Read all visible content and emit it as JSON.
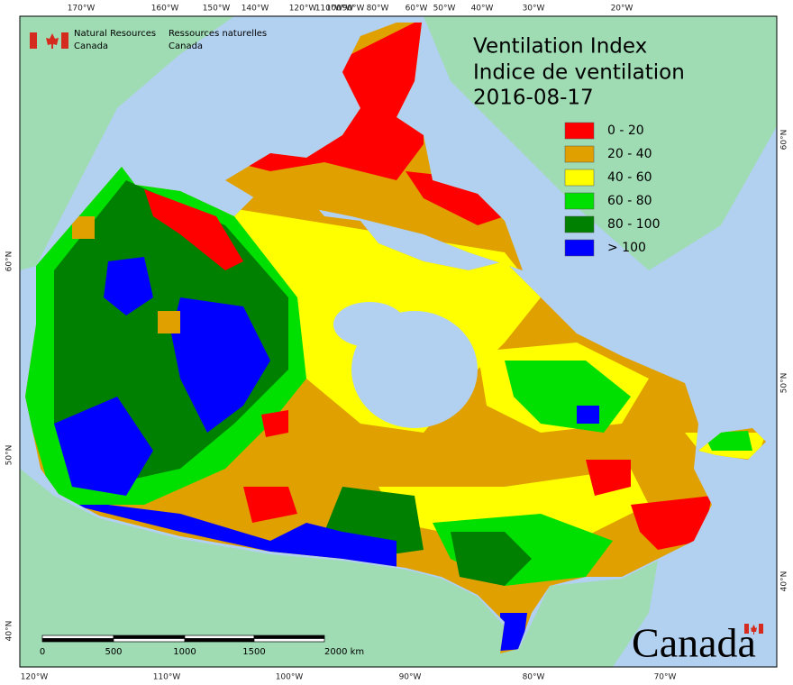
{
  "header": {
    "agency_en": [
      "Natural Resources",
      "Canada"
    ],
    "agency_fr": [
      "Ressources naturelles",
      "Canada"
    ]
  },
  "title": [
    "Ventilation Index",
    "Indice de ventilation"
  ],
  "date": "2016-08-17",
  "legend": [
    {
      "label": "0 - 20",
      "color": "#ff0000"
    },
    {
      "label": "20 - 40",
      "color": "#e0a000"
    },
    {
      "label": "40 - 60",
      "color": "#ffff00"
    },
    {
      "label": "60 - 80",
      "color": "#00e000"
    },
    {
      "label": "80 - 100",
      "color": "#008000"
    },
    {
      "label": "> 100",
      "color": "#0000ff"
    }
  ],
  "graticule": {
    "top": [
      "170°W",
      "160°W",
      "150°W",
      "140°W",
      "120°W",
      "110°W",
      "100°W",
      "90°W",
      "80°W",
      "60°W",
      "50°W",
      "40°W",
      "30°W",
      "20°W"
    ],
    "bottom": [
      "120°W",
      "110°W",
      "100°W",
      "90°W",
      "80°W",
      "70°W"
    ],
    "left": [
      "60°N",
      "50°N",
      "40°N"
    ],
    "right": [
      "60°N",
      "50°N",
      "40°N"
    ]
  },
  "scale_bar": [
    "0",
    "500",
    "1000",
    "1500",
    "2000  km"
  ],
  "wordmark": "Canada"
}
